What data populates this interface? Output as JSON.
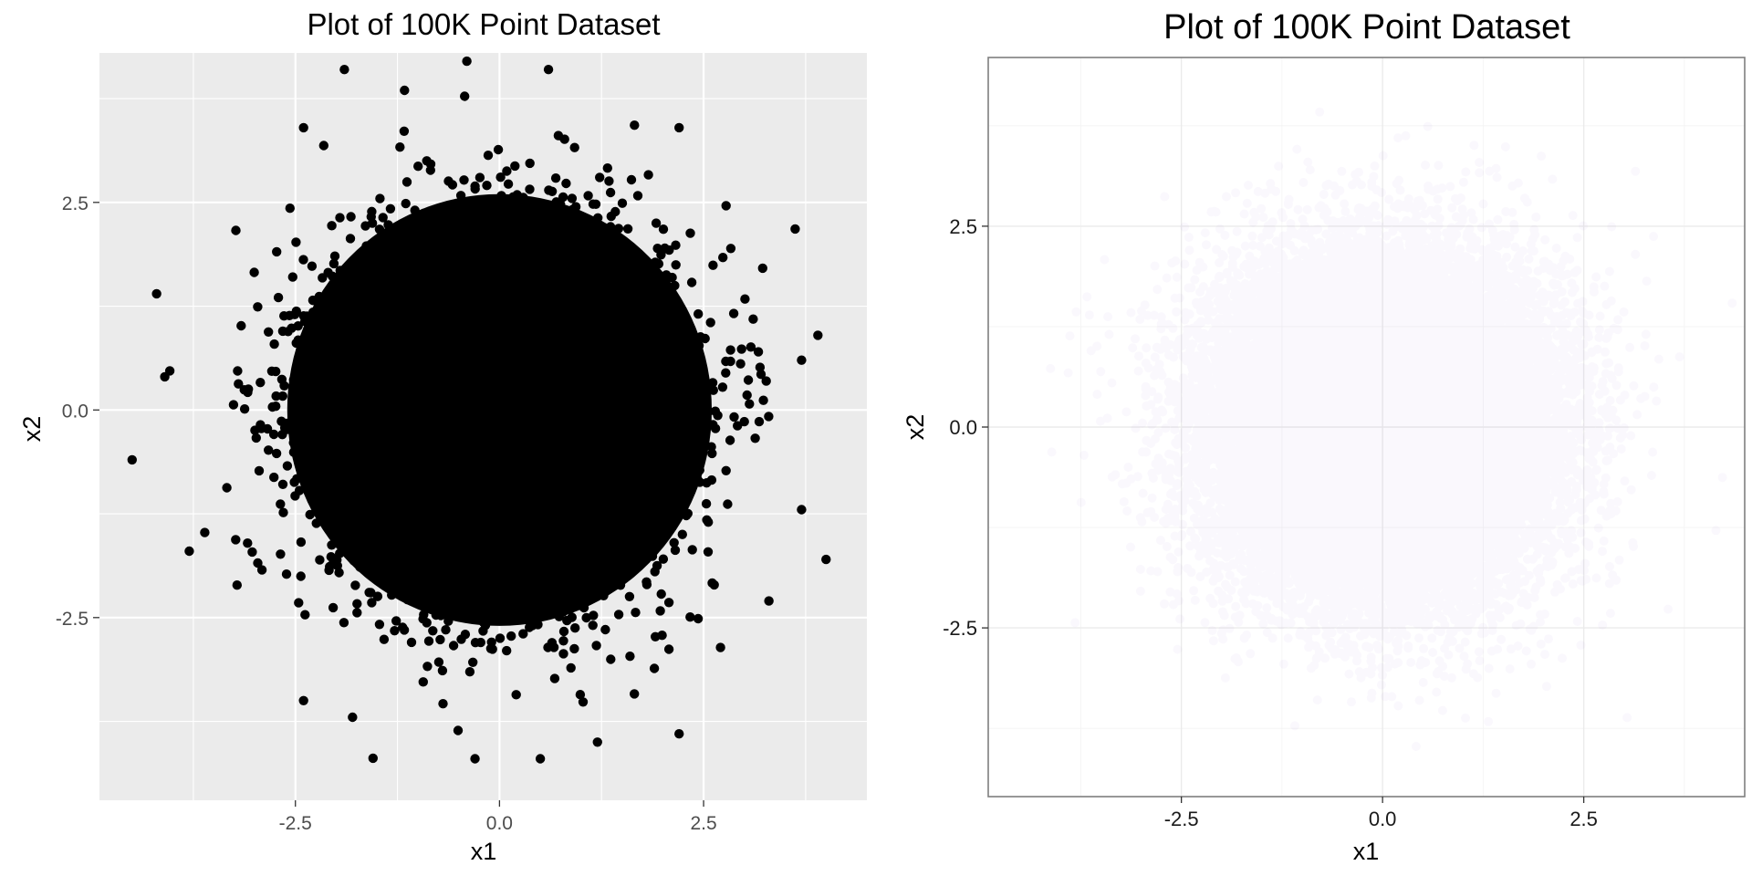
{
  "chart_data": [
    {
      "type": "scatter",
      "title": "Plot of 100K Point Dataset",
      "xlabel": "x1",
      "ylabel": "x2",
      "xlim": [
        -4.9,
        4.5
      ],
      "ylim": [
        -4.7,
        4.3
      ],
      "xticks": [
        -2.5,
        0.0,
        2.5
      ],
      "yticks": [
        -2.5,
        0.0,
        2.5
      ],
      "xtick_labels": [
        "-2.5",
        "0.0",
        "2.5"
      ],
      "ytick_labels": [
        "-2.5",
        "0.0",
        "2.5"
      ],
      "theme": "grey panel, white gridlines",
      "grid": true,
      "point_color": "#000000",
      "point_alpha": 1.0,
      "point_count": 100000,
      "distribution": {
        "kind": "bivariate normal",
        "x_mean": 0.0,
        "y_mean": 0.0,
        "x_sd": 1.0,
        "y_sd": 1.0
      },
      "series": [
        {
          "points": [
            [
              -4.5,
              -0.6
            ],
            [
              -4.2,
              1.4
            ],
            [
              4.0,
              -1.8
            ],
            [
              3.9,
              0.9
            ],
            [
              -1.9,
              4.1
            ],
            [
              -0.4,
              4.2
            ],
            [
              0.6,
              4.1
            ],
            [
              -0.3,
              -4.2
            ],
            [
              0.5,
              -4.2
            ],
            [
              -4.1,
              0.4
            ],
            [
              3.7,
              0.6
            ],
            [
              3.7,
              -1.2
            ],
            [
              -3.8,
              -1.7
            ],
            [
              2.2,
              -3.9
            ],
            [
              3.3,
              -2.3
            ],
            [
              -2.4,
              3.4
            ],
            [
              2.2,
              3.4
            ],
            [
              -2.4,
              -3.5
            ],
            [
              -1.8,
              -3.7
            ],
            [
              1.2,
              -4.0
            ]
          ]
        }
      ]
    },
    {
      "type": "scatter",
      "title": "Plot of 100K Point Dataset",
      "xlabel": "x1",
      "ylabel": "x2",
      "xlim": [
        -4.9,
        4.5
      ],
      "ylim": [
        -4.6,
        4.6
      ],
      "xticks": [
        -2.5,
        0.0,
        2.5
      ],
      "yticks": [
        -2.5,
        0.0,
        2.5
      ],
      "xtick_labels": [
        "-2.5",
        "0.0",
        "2.5"
      ],
      "ytick_labels": [
        "-2.5",
        "0.0",
        "2.5"
      ],
      "theme": "white panel, light grey gridlines, grey border",
      "grid": true,
      "point_color": "#7b2fc7",
      "point_alpha": 0.03,
      "point_count": 100000,
      "distribution": {
        "kind": "bivariate normal",
        "x_mean": 0.0,
        "y_mean": 0.0,
        "x_sd": 1.0,
        "y_sd": 1.0
      }
    }
  ]
}
